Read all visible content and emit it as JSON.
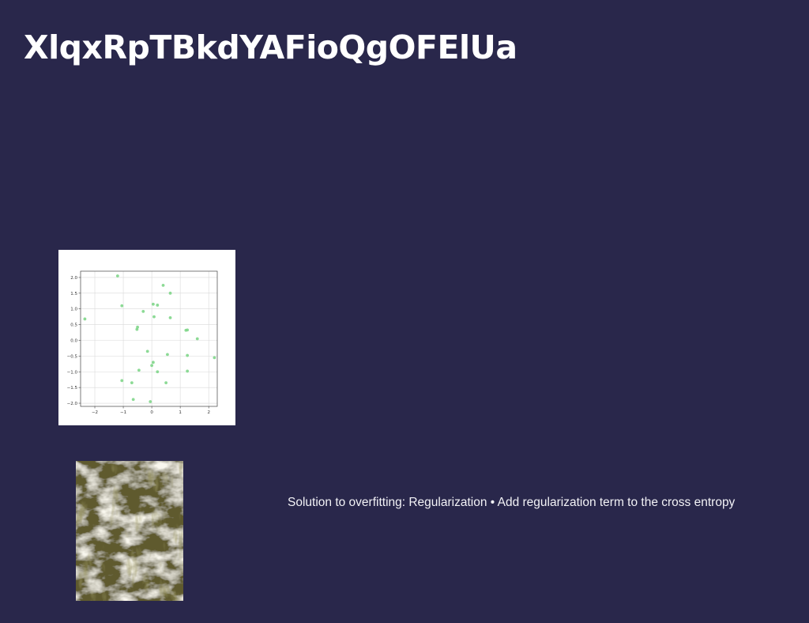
{
  "slide": {
    "title": "XlqxRpTBkdYAFioQgOFElUa",
    "body_text": "Solution to overfitting: Regularization • Add regularization term to the cross entropy",
    "background_color": "#29274b",
    "photo_description_icon": "waterfall-texture-image"
  },
  "chart_data": {
    "type": "scatter",
    "title": "",
    "xlabel": "",
    "ylabel": "",
    "xlim": [
      -2.5,
      2.3
    ],
    "ylim": [
      -2.1,
      2.2
    ],
    "grid": true,
    "point_color": "#7fd68a",
    "x_ticks": [
      -2,
      -1,
      0,
      1,
      2
    ],
    "x_tick_labels": [
      "−2",
      "−1",
      "0",
      "1",
      "2"
    ],
    "y_ticks": [
      -2.0,
      -1.5,
      -1.0,
      -0.5,
      0.0,
      0.5,
      1.0,
      1.5,
      2.0
    ],
    "y_tick_labels": [
      "−2.0",
      "−1.5",
      "−1.0",
      "−0.5",
      "0.0",
      "0.5",
      "1.0",
      "1.5",
      "2.0"
    ],
    "points": [
      {
        "x": -1.2,
        "y": 2.05
      },
      {
        "x": 0.4,
        "y": 1.75
      },
      {
        "x": 0.65,
        "y": 1.5
      },
      {
        "x": 0.05,
        "y": 1.15
      },
      {
        "x": 0.2,
        "y": 1.12
      },
      {
        "x": -1.05,
        "y": 1.1
      },
      {
        "x": -0.3,
        "y": 0.92
      },
      {
        "x": 0.08,
        "y": 0.75
      },
      {
        "x": 0.65,
        "y": 0.72
      },
      {
        "x": -2.35,
        "y": 0.68
      },
      {
        "x": -0.5,
        "y": 0.42
      },
      {
        "x": -0.52,
        "y": 0.35
      },
      {
        "x": 1.2,
        "y": 0.32
      },
      {
        "x": 1.25,
        "y": 0.33
      },
      {
        "x": 1.6,
        "y": 0.05
      },
      {
        "x": -0.15,
        "y": -0.35
      },
      {
        "x": 0.55,
        "y": -0.45
      },
      {
        "x": 1.25,
        "y": -0.48
      },
      {
        "x": 2.2,
        "y": -0.55
      },
      {
        "x": 0.05,
        "y": -0.7
      },
      {
        "x": 0.0,
        "y": -0.8
      },
      {
        "x": -0.45,
        "y": -0.95
      },
      {
        "x": 0.2,
        "y": -1.0
      },
      {
        "x": 1.25,
        "y": -0.98
      },
      {
        "x": -1.05,
        "y": -1.28
      },
      {
        "x": -0.7,
        "y": -1.35
      },
      {
        "x": 0.5,
        "y": -1.35
      },
      {
        "x": -0.65,
        "y": -1.88
      },
      {
        "x": -0.05,
        "y": -1.95
      }
    ]
  }
}
